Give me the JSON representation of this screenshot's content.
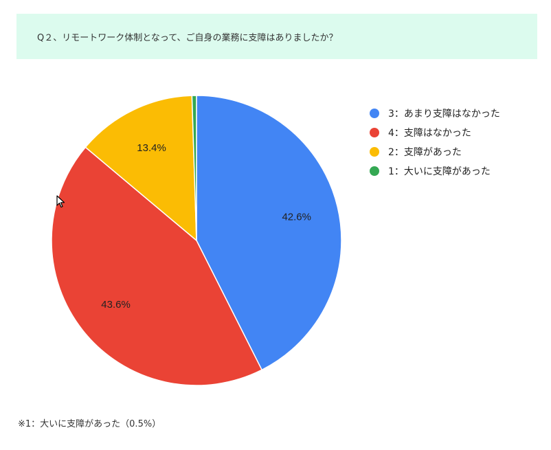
{
  "question": "Q２、リモートワーク体制となって、ご自身の業務に支障はありましたか？",
  "footnote": "※1：大いに支障があった（0.5%）",
  "chart_data": {
    "type": "pie",
    "title": "",
    "slices": [
      {
        "label": "3：あまり支障はなかった",
        "value": 42.6,
        "display": "42.6%",
        "color": "#4285f4"
      },
      {
        "label": "4：支障はなかった",
        "value": 43.6,
        "display": "43.6%",
        "color": "#ea4335"
      },
      {
        "label": "2：支障があった",
        "value": 13.4,
        "display": "13.4%",
        "color": "#fbbc04"
      },
      {
        "label": "1：大いに支障があった",
        "value": 0.5,
        "display": "",
        "color": "#34a853"
      }
    ],
    "legend_position": "right"
  }
}
